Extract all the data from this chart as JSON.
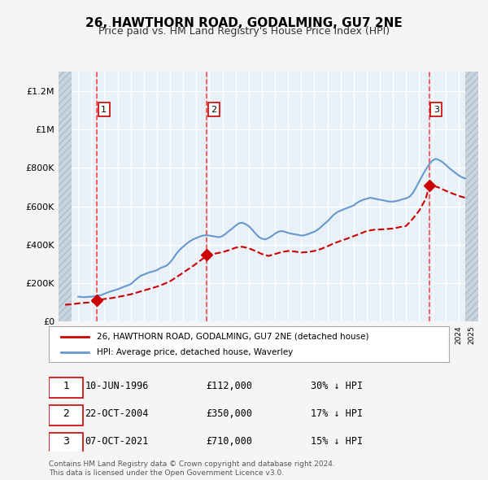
{
  "title": "26, HAWTHORN ROAD, GODALMING, GU7 2NE",
  "subtitle": "Price paid vs. HM Land Registry's House Price Index (HPI)",
  "ylabel_ticks": [
    "£0",
    "£200K",
    "£400K",
    "£600K",
    "£800K",
    "£1M",
    "£1.2M"
  ],
  "ylim": [
    0,
    1300000
  ],
  "yticks": [
    0,
    200000,
    400000,
    600000,
    800000,
    1000000,
    1200000
  ],
  "xlim_start": 1993.5,
  "xlim_end": 2025.5,
  "hatch_left_end": 1994.5,
  "hatch_right_start": 2024.5,
  "red_line_color": "#cc0000",
  "blue_line_color": "#6699cc",
  "transaction_color": "#cc0000",
  "dashed_line_color": "#ff4444",
  "transactions": [
    {
      "year": 1996.44,
      "price": 112000,
      "label": "1",
      "date": "10-JUN-1996",
      "price_str": "£112,000",
      "hpi_pct": "30% ↓ HPI"
    },
    {
      "year": 2004.81,
      "price": 350000,
      "label": "2",
      "date": "22-OCT-2004",
      "price_str": "£350,000",
      "hpi_pct": "17% ↓ HPI"
    },
    {
      "year": 2021.77,
      "price": 710000,
      "label": "3",
      "date": "07-OCT-2021",
      "price_str": "£710,000",
      "hpi_pct": "15% ↓ HPI"
    }
  ],
  "hpi_data_x": [
    1995.0,
    1995.25,
    1995.5,
    1995.75,
    1996.0,
    1996.25,
    1996.5,
    1996.75,
    1997.0,
    1997.25,
    1997.5,
    1997.75,
    1998.0,
    1998.25,
    1998.5,
    1998.75,
    1999.0,
    1999.25,
    1999.5,
    1999.75,
    2000.0,
    2000.25,
    2000.5,
    2000.75,
    2001.0,
    2001.25,
    2001.5,
    2001.75,
    2002.0,
    2002.25,
    2002.5,
    2002.75,
    2003.0,
    2003.25,
    2003.5,
    2003.75,
    2004.0,
    2004.25,
    2004.5,
    2004.75,
    2005.0,
    2005.25,
    2005.5,
    2005.75,
    2006.0,
    2006.25,
    2006.5,
    2006.75,
    2007.0,
    2007.25,
    2007.5,
    2007.75,
    2008.0,
    2008.25,
    2008.5,
    2008.75,
    2009.0,
    2009.25,
    2009.5,
    2009.75,
    2010.0,
    2010.25,
    2010.5,
    2010.75,
    2011.0,
    2011.25,
    2011.5,
    2011.75,
    2012.0,
    2012.25,
    2012.5,
    2012.75,
    2013.0,
    2013.25,
    2013.5,
    2013.75,
    2014.0,
    2014.25,
    2014.5,
    2014.75,
    2015.0,
    2015.25,
    2015.5,
    2015.75,
    2016.0,
    2016.25,
    2016.5,
    2016.75,
    2017.0,
    2017.25,
    2017.5,
    2017.75,
    2018.0,
    2018.25,
    2018.5,
    2018.75,
    2019.0,
    2019.25,
    2019.5,
    2019.75,
    2020.0,
    2020.25,
    2020.5,
    2020.75,
    2021.0,
    2021.25,
    2021.5,
    2021.75,
    2022.0,
    2022.25,
    2022.5,
    2022.75,
    2023.0,
    2023.25,
    2023.5,
    2023.75,
    2024.0,
    2024.25,
    2024.5
  ],
  "hpi_data_y": [
    130000,
    128000,
    127000,
    129000,
    130000,
    132000,
    135000,
    138000,
    145000,
    152000,
    158000,
    163000,
    168000,
    175000,
    182000,
    188000,
    195000,
    210000,
    225000,
    238000,
    245000,
    252000,
    258000,
    262000,
    268000,
    278000,
    285000,
    292000,
    308000,
    330000,
    355000,
    375000,
    390000,
    405000,
    418000,
    428000,
    435000,
    442000,
    448000,
    450000,
    448000,
    445000,
    442000,
    440000,
    445000,
    458000,
    472000,
    485000,
    500000,
    512000,
    515000,
    508000,
    498000,
    480000,
    460000,
    442000,
    432000,
    428000,
    435000,
    445000,
    458000,
    468000,
    472000,
    468000,
    462000,
    458000,
    455000,
    452000,
    448000,
    450000,
    455000,
    462000,
    468000,
    478000,
    492000,
    508000,
    522000,
    540000,
    558000,
    570000,
    578000,
    585000,
    592000,
    598000,
    605000,
    618000,
    628000,
    635000,
    640000,
    645000,
    642000,
    638000,
    635000,
    632000,
    628000,
    625000,
    625000,
    628000,
    632000,
    638000,
    642000,
    650000,
    668000,
    698000,
    730000,
    762000,
    792000,
    818000,
    838000,
    848000,
    842000,
    832000,
    818000,
    802000,
    788000,
    775000,
    762000,
    752000,
    745000
  ],
  "red_paid_x": [
    1994.0,
    1994.5,
    1995.0,
    1995.5,
    1996.0,
    1996.44,
    1996.5,
    1997.0,
    1997.5,
    1998.0,
    1998.5,
    1999.0,
    1999.5,
    2000.0,
    2000.5,
    2001.0,
    2001.5,
    2002.0,
    2002.5,
    2003.0,
    2003.5,
    2004.0,
    2004.5,
    2004.81,
    2005.0,
    2005.5,
    2006.0,
    2006.5,
    2007.0,
    2007.5,
    2008.0,
    2008.5,
    2009.0,
    2009.5,
    2010.0,
    2010.5,
    2011.0,
    2011.5,
    2012.0,
    2012.5,
    2013.0,
    2013.5,
    2014.0,
    2014.5,
    2015.0,
    2015.5,
    2016.0,
    2016.5,
    2017.0,
    2017.5,
    2018.0,
    2018.5,
    2019.0,
    2019.5,
    2020.0,
    2020.5,
    2021.0,
    2021.5,
    2021.77,
    2022.0,
    2022.5,
    2023.0,
    2023.5,
    2024.0,
    2024.5
  ],
  "red_paid_y": [
    88000,
    90000,
    95000,
    98000,
    100000,
    112000,
    112000,
    118000,
    122000,
    128000,
    135000,
    142000,
    152000,
    162000,
    172000,
    182000,
    195000,
    210000,
    232000,
    255000,
    278000,
    302000,
    328000,
    350000,
    350000,
    355000,
    362000,
    372000,
    385000,
    390000,
    382000,
    368000,
    352000,
    342000,
    352000,
    362000,
    368000,
    365000,
    360000,
    362000,
    368000,
    378000,
    392000,
    408000,
    420000,
    432000,
    445000,
    458000,
    472000,
    478000,
    480000,
    482000,
    485000,
    492000,
    498000,
    535000,
    578000,
    640000,
    710000,
    710000,
    698000,
    682000,
    668000,
    655000,
    645000
  ],
  "legend_red_label": "26, HAWTHORN ROAD, GODALMING, GU7 2NE (detached house)",
  "legend_blue_label": "HPI: Average price, detached house, Waverley",
  "footer_text": "Contains HM Land Registry data © Crown copyright and database right 2024.\nThis data is licensed under the Open Government Licence v3.0.",
  "bg_color": "#f0f4f8",
  "plot_bg_color": "#e8f0f8",
  "hatch_color": "#c8d4e0",
  "grid_color": "#ffffff",
  "legend_box_color": "#cc0000"
}
